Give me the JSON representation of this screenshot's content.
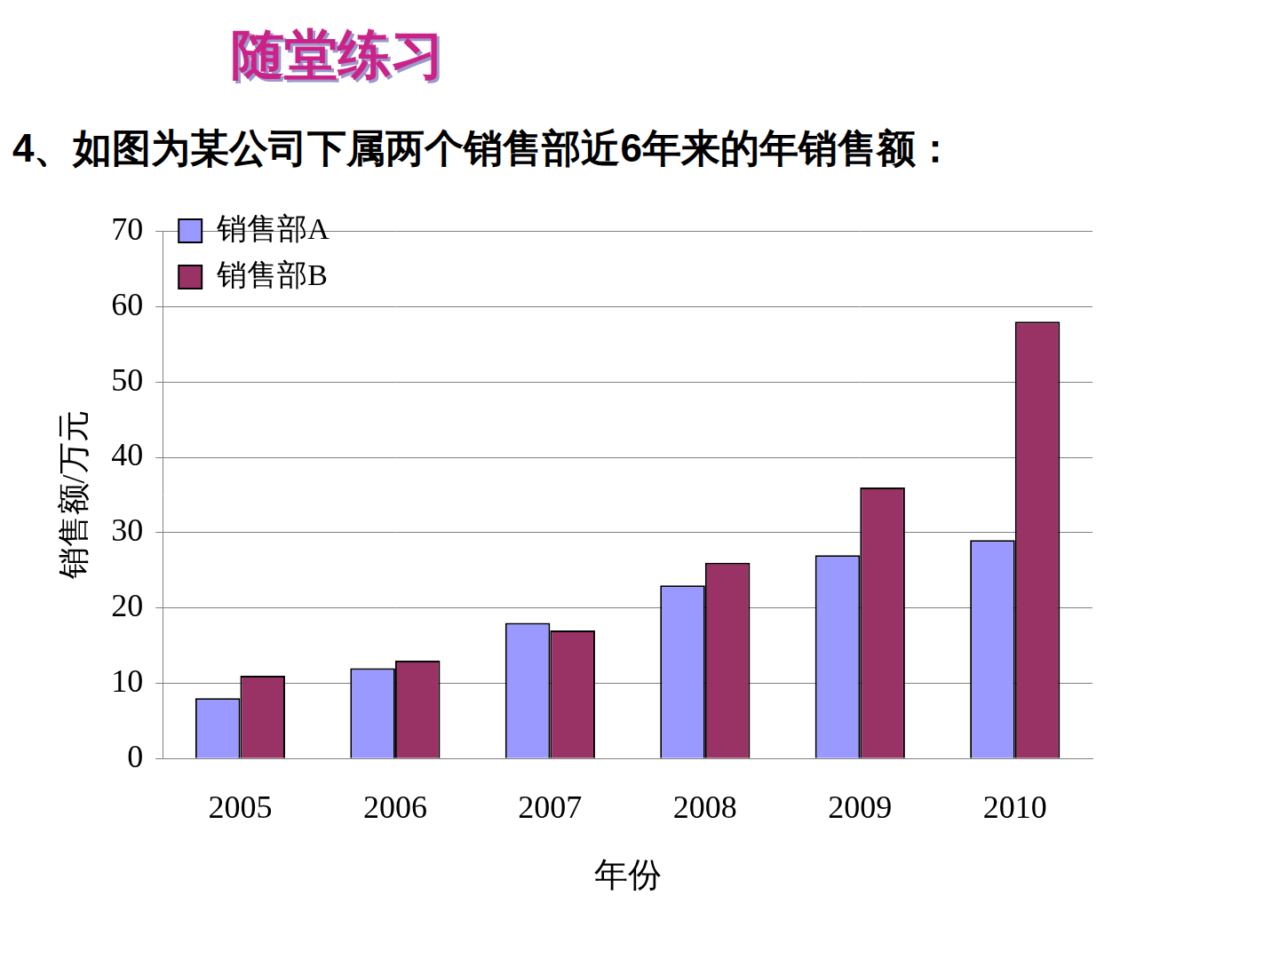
{
  "header": "随堂练习",
  "chart_data": {
    "type": "bar",
    "title": "4、如图为某公司下属两个销售部近6年来的年销售额：",
    "x_label": "年份",
    "y_label": "销售额/万元",
    "categories": [
      "2005",
      "2006",
      "2007",
      "2008",
      "2009",
      "2010"
    ],
    "series": [
      {
        "name": "销售部A",
        "color": "#9999ff",
        "values": [
          8,
          12,
          18,
          23,
          27,
          29
        ]
      },
      {
        "name": "销售部B",
        "color": "#993366",
        "values": [
          11,
          13,
          17,
          26,
          36,
          58
        ]
      }
    ],
    "ylim": [
      0,
      70
    ],
    "yticks": [
      0,
      10,
      20,
      30,
      40,
      50,
      60,
      70
    ],
    "grid": true,
    "legend": "upper left"
  }
}
